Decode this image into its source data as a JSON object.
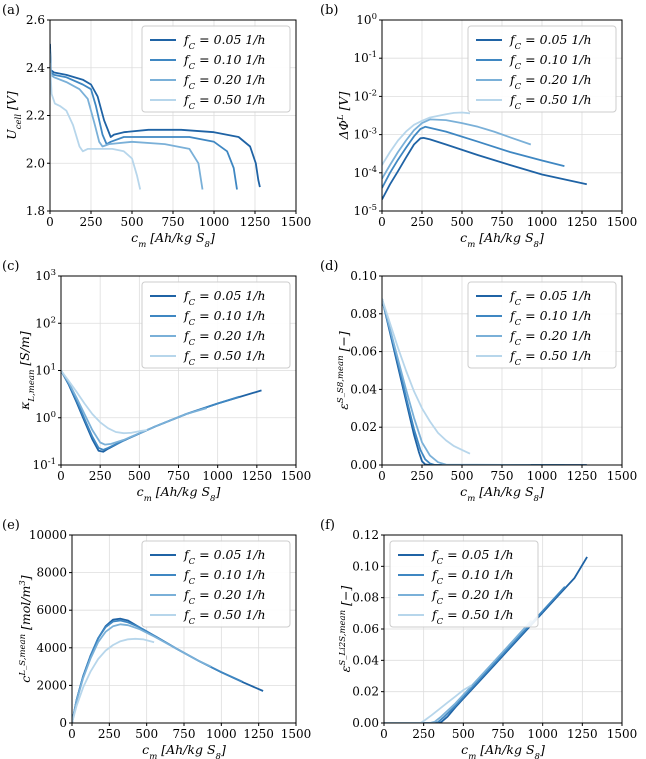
{
  "colors": {
    "s005": "#1f63a5",
    "s010": "#3f87c2",
    "s020": "#7ab0d8",
    "s050": "#b7d6eb"
  },
  "chart_data": [
    {
      "type": "line",
      "panel_label": "(a)",
      "xlabel": "c_m [Ah/kg S_8]",
      "ylabel": "U_cell [V]",
      "xlim": [
        0,
        1500
      ],
      "ylim": [
        1.8,
        2.6
      ],
      "xscale": "linear",
      "yscale": "linear",
      "xticks": [
        "0",
        "250",
        "500",
        "750",
        "1000",
        "1250",
        "1500"
      ],
      "yticks": [
        "1.8",
        "2.0",
        "2.2",
        "2.4",
        "2.6"
      ],
      "grid": true,
      "legend_position": "top-right",
      "series": [
        {
          "name": "f_C = 0.05 1/h",
          "color": "#1f63a5",
          "x": [
            0,
            5,
            25,
            100,
            200,
            250,
            290,
            330,
            370,
            390,
            450,
            600,
            800,
            1000,
            1150,
            1220,
            1255,
            1270,
            1280
          ],
          "y": [
            2.5,
            2.39,
            2.38,
            2.37,
            2.35,
            2.33,
            2.28,
            2.18,
            2.11,
            2.12,
            2.13,
            2.14,
            2.14,
            2.13,
            2.11,
            2.07,
            2.0,
            1.93,
            1.9
          ]
        },
        {
          "name": "f_C = 0.10 1/h",
          "color": "#3f87c2",
          "x": [
            0,
            5,
            25,
            100,
            200,
            250,
            280,
            320,
            345,
            370,
            450,
            650,
            850,
            1000,
            1080,
            1120,
            1140
          ],
          "y": [
            2.48,
            2.38,
            2.37,
            2.36,
            2.33,
            2.31,
            2.24,
            2.12,
            2.08,
            2.09,
            2.11,
            2.11,
            2.11,
            2.09,
            2.05,
            1.98,
            1.89
          ]
        },
        {
          "name": "f_C = 0.20 1/h",
          "color": "#7ab0d8",
          "x": [
            0,
            5,
            25,
            100,
            180,
            230,
            270,
            300,
            320,
            360,
            500,
            700,
            850,
            905,
            930
          ],
          "y": [
            2.46,
            2.37,
            2.36,
            2.34,
            2.31,
            2.27,
            2.17,
            2.09,
            2.07,
            2.08,
            2.09,
            2.08,
            2.06,
            2.0,
            1.89
          ]
        },
        {
          "name": "f_C = 0.50 1/h",
          "color": "#b7d6eb",
          "x": [
            0,
            10,
            30,
            60,
            100,
            140,
            180,
            200,
            230,
            300,
            380,
            450,
            500,
            530,
            550
          ],
          "y": [
            2.42,
            2.29,
            2.25,
            2.24,
            2.22,
            2.16,
            2.07,
            2.05,
            2.06,
            2.06,
            2.06,
            2.05,
            2.02,
            1.95,
            1.89
          ]
        }
      ]
    },
    {
      "type": "line",
      "panel_label": "(b)",
      "xlabel": "c_m [Ah/kg S_8]",
      "ylabel": "ΔΦ^L [V]",
      "xlim": [
        0,
        1500
      ],
      "ylim": [
        1e-05,
        1
      ],
      "xscale": "linear",
      "yscale": "log",
      "xticks": [
        "0",
        "250",
        "500",
        "750",
        "1000",
        "1250",
        "1500"
      ],
      "yticks": [
        "10^-5",
        "10^-4",
        "10^-3",
        "10^-2",
        "10^-1",
        "10^0"
      ],
      "grid": true,
      "legend_position": "top-right",
      "series": [
        {
          "name": "f_C = 0.05 1/h",
          "color": "#1f63a5",
          "x": [
            0,
            50,
            100,
            150,
            200,
            240,
            260,
            300,
            400,
            600,
            800,
            1000,
            1280
          ],
          "y": [
            2e-05,
            5e-05,
            0.00011,
            0.00025,
            0.00055,
            0.0008,
            0.00082,
            0.00075,
            0.00055,
            0.00029,
            0.00016,
            9e-05,
            5e-05
          ]
        },
        {
          "name": "f_C = 0.10 1/h",
          "color": "#3f87c2",
          "x": [
            0,
            50,
            100,
            150,
            200,
            240,
            270,
            300,
            400,
            600,
            800,
            1000,
            1140
          ],
          "y": [
            4e-05,
            0.0001,
            0.00022,
            0.00045,
            0.0009,
            0.0014,
            0.0016,
            0.0015,
            0.0012,
            0.00065,
            0.00035,
            0.00021,
            0.00015
          ]
        },
        {
          "name": "f_C = 0.20 1/h",
          "color": "#7ab0d8",
          "x": [
            0,
            50,
            100,
            150,
            200,
            250,
            300,
            400,
            500,
            600,
            700,
            800,
            930
          ],
          "y": [
            7e-05,
            0.00016,
            0.00035,
            0.0007,
            0.0013,
            0.002,
            0.0025,
            0.0024,
            0.002,
            0.0016,
            0.0012,
            0.00085,
            0.00055
          ]
        },
        {
          "name": "f_C = 0.50 1/h",
          "color": "#b7d6eb",
          "x": [
            0,
            50,
            100,
            150,
            200,
            250,
            300,
            400,
            450,
            500,
            550
          ],
          "y": [
            0.00016,
            0.00035,
            0.0007,
            0.0012,
            0.0018,
            0.0023,
            0.0028,
            0.0034,
            0.0037,
            0.0038,
            0.0036
          ]
        }
      ]
    },
    {
      "type": "line",
      "panel_label": "(c)",
      "xlabel": "c_m [Ah/kg S_8]",
      "ylabel": "κ_L,mean [S/m]",
      "xlim": [
        0,
        1500
      ],
      "ylim": [
        0.1,
        1000
      ],
      "xscale": "linear",
      "yscale": "log",
      "xticks": [
        "0",
        "250",
        "500",
        "750",
        "1000",
        "1250",
        "1500"
      ],
      "yticks": [
        "10^-1",
        "10^0",
        "10^1",
        "10^2",
        "10^3"
      ],
      "grid": true,
      "legend_position": "top-right",
      "series": [
        {
          "name": "f_C = 0.05 1/h",
          "color": "#1f63a5",
          "x": [
            0,
            50,
            100,
            150,
            200,
            240,
            270,
            300,
            400,
            600,
            800,
            1000,
            1280
          ],
          "y": [
            10,
            5.0,
            2.1,
            0.85,
            0.35,
            0.2,
            0.19,
            0.22,
            0.33,
            0.65,
            1.2,
            2.0,
            3.8
          ]
        },
        {
          "name": "f_C = 0.10 1/h",
          "color": "#3f87c2",
          "x": [
            0,
            50,
            100,
            150,
            200,
            240,
            270,
            300,
            400,
            600,
            800,
            1000,
            1140
          ],
          "y": [
            10,
            5.2,
            2.3,
            0.95,
            0.4,
            0.23,
            0.21,
            0.23,
            0.33,
            0.65,
            1.2,
            2.0,
            2.8
          ]
        },
        {
          "name": "f_C = 0.20 1/h",
          "color": "#7ab0d8",
          "x": [
            0,
            50,
            100,
            150,
            200,
            250,
            280,
            320,
            400,
            600,
            800,
            930
          ],
          "y": [
            10,
            5.5,
            2.6,
            1.2,
            0.55,
            0.3,
            0.27,
            0.28,
            0.34,
            0.65,
            1.2,
            1.6
          ]
        },
        {
          "name": "f_C = 0.50 1/h",
          "color": "#b7d6eb",
          "x": [
            0,
            50,
            100,
            150,
            200,
            250,
            300,
            350,
            400,
            450,
            500,
            550
          ],
          "y": [
            10,
            6.0,
            3.5,
            2.0,
            1.2,
            0.8,
            0.6,
            0.5,
            0.47,
            0.48,
            0.52,
            0.55
          ]
        }
      ]
    },
    {
      "type": "line",
      "panel_label": "(d)",
      "xlabel": "c_m [Ah/kg S_8]",
      "ylabel": "ε^S_S8,mean [−]",
      "xlim": [
        0,
        1500
      ],
      "ylim": [
        0,
        0.1
      ],
      "xscale": "linear",
      "yscale": "linear",
      "xticks": [
        "0",
        "250",
        "500",
        "750",
        "1000",
        "1250",
        "1500"
      ],
      "yticks": [
        "0.00",
        "0.02",
        "0.04",
        "0.06",
        "0.08",
        "0.10"
      ],
      "grid": true,
      "legend_position": "top-right",
      "series": [
        {
          "name": "f_C = 0.05 1/h",
          "color": "#1f63a5",
          "x": [
            0,
            50,
            100,
            150,
            200,
            230,
            250,
            270,
            300,
            1280
          ],
          "y": [
            0.088,
            0.07,
            0.052,
            0.034,
            0.016,
            0.007,
            0.002,
            0.0003,
            0.0,
            0.0
          ]
        },
        {
          "name": "f_C = 0.10 1/h",
          "color": "#3f87c2",
          "x": [
            0,
            50,
            100,
            150,
            200,
            240,
            270,
            300,
            330,
            1140
          ],
          "y": [
            0.088,
            0.071,
            0.054,
            0.036,
            0.019,
            0.008,
            0.003,
            0.0008,
            0.0,
            0.0
          ]
        },
        {
          "name": "f_C = 0.20 1/h",
          "color": "#7ab0d8",
          "x": [
            0,
            50,
            100,
            150,
            200,
            250,
            300,
            350,
            400,
            930
          ],
          "y": [
            0.088,
            0.072,
            0.056,
            0.04,
            0.025,
            0.012,
            0.005,
            0.0015,
            0.0002,
            0.0
          ]
        },
        {
          "name": "f_C = 0.50 1/h",
          "color": "#b7d6eb",
          "x": [
            0,
            50,
            100,
            150,
            200,
            250,
            300,
            350,
            400,
            450,
            500,
            550
          ],
          "y": [
            0.088,
            0.075,
            0.062,
            0.05,
            0.039,
            0.03,
            0.023,
            0.017,
            0.013,
            0.01,
            0.008,
            0.006
          ]
        }
      ]
    },
    {
      "type": "line",
      "panel_label": "(e)",
      "xlabel": "c_m [Ah/kg S_8]",
      "ylabel": "c^L_S,mean [mol/m^3]",
      "xlim": [
        0,
        1500
      ],
      "ylim": [
        0,
        10000
      ],
      "xscale": "linear",
      "yscale": "linear",
      "xticks": [
        "0",
        "250",
        "500",
        "750",
        "1000",
        "1250",
        "1500"
      ],
      "yticks": [
        "0",
        "2000",
        "4000",
        "6000",
        "8000",
        "10000"
      ],
      "grid": true,
      "legend_position": "top-right",
      "series": [
        {
          "name": "f_C = 0.05 1/h",
          "color": "#1f63a5",
          "x": [
            0,
            30,
            75,
            125,
            175,
            225,
            275,
            325,
            375,
            450,
            550,
            700,
            850,
            1000,
            1150,
            1280
          ],
          "y": [
            0,
            1200,
            2500,
            3600,
            4500,
            5150,
            5500,
            5550,
            5450,
            5100,
            4650,
            3950,
            3300,
            2700,
            2150,
            1700
          ]
        },
        {
          "name": "f_C = 0.10 1/h",
          "color": "#3f87c2",
          "x": [
            0,
            30,
            75,
            125,
            175,
            225,
            275,
            325,
            375,
            450,
            550,
            700,
            850,
            1000,
            1140
          ],
          "y": [
            0,
            1200,
            2500,
            3600,
            4500,
            5100,
            5400,
            5450,
            5350,
            5100,
            4650,
            3950,
            3300,
            2700,
            2200
          ]
        },
        {
          "name": "f_C = 0.20 1/h",
          "color": "#7ab0d8",
          "x": [
            0,
            30,
            75,
            125,
            175,
            225,
            275,
            325,
            375,
            450,
            550,
            700,
            850,
            930
          ],
          "y": [
            0,
            1150,
            2400,
            3450,
            4300,
            4850,
            5150,
            5250,
            5200,
            5000,
            4600,
            3950,
            3300,
            3000
          ]
        },
        {
          "name": "f_C = 0.50 1/h",
          "color": "#b7d6eb",
          "x": [
            0,
            30,
            75,
            125,
            175,
            225,
            275,
            325,
            375,
            425,
            475,
            525,
            550
          ],
          "y": [
            0,
            900,
            1900,
            2750,
            3400,
            3850,
            4150,
            4350,
            4450,
            4480,
            4450,
            4350,
            4300
          ]
        }
      ]
    },
    {
      "type": "line",
      "panel_label": "(f)",
      "xlabel": "c_m [Ah/kg S_8]",
      "ylabel": "ε^S_Li2S,mean [−]",
      "xlim": [
        0,
        1500
      ],
      "ylim": [
        0,
        0.12
      ],
      "xscale": "linear",
      "yscale": "linear",
      "xticks": [
        "0",
        "250",
        "500",
        "750",
        "1000",
        "1250",
        "1500"
      ],
      "yticks": [
        "0.00",
        "0.02",
        "0.04",
        "0.06",
        "0.08",
        "0.10",
        "0.12"
      ],
      "grid": true,
      "legend_position": "top-left",
      "series": [
        {
          "name": "f_C = 0.05 1/h",
          "color": "#1f63a5",
          "x": [
            0,
            330,
            360,
            400,
            450,
            500,
            600,
            700,
            800,
            900,
            1000,
            1100,
            1200,
            1280
          ],
          "y": [
            0,
            0,
            0.0005,
            0.004,
            0.01,
            0.0155,
            0.0265,
            0.0375,
            0.0485,
            0.0595,
            0.0705,
            0.0815,
            0.0925,
            0.106
          ]
        },
        {
          "name": "f_C = 0.10 1/h",
          "color": "#3f87c2",
          "x": [
            0,
            310,
            340,
            380,
            450,
            500,
            600,
            700,
            800,
            900,
            1000,
            1140
          ],
          "y": [
            0,
            0,
            0.0005,
            0.004,
            0.011,
            0.0165,
            0.0275,
            0.0385,
            0.0495,
            0.0605,
            0.0715,
            0.087
          ]
        },
        {
          "name": "f_C = 0.20 1/h",
          "color": "#7ab0d8",
          "x": [
            0,
            290,
            320,
            360,
            450,
            500,
            600,
            700,
            800,
            930
          ],
          "y": [
            0,
            0,
            0.0008,
            0.004,
            0.0125,
            0.018,
            0.029,
            0.04,
            0.051,
            0.0655
          ]
        },
        {
          "name": "f_C = 0.50 1/h",
          "color": "#b7d6eb",
          "x": [
            0,
            230,
            260,
            300,
            350,
            400,
            450,
            500,
            550
          ],
          "y": [
            0,
            0,
            0.002,
            0.005,
            0.009,
            0.013,
            0.017,
            0.021,
            0.024
          ]
        }
      ]
    }
  ]
}
